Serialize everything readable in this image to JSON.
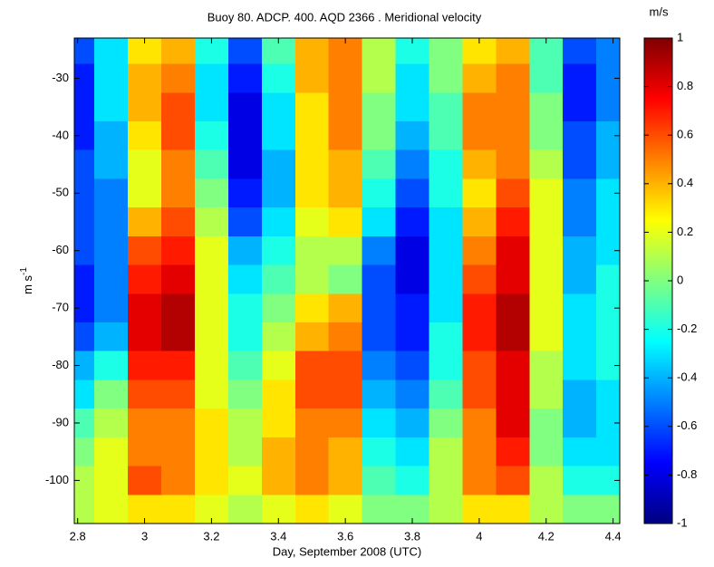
{
  "chart_data": {
    "type": "heatmap",
    "title": "Buoy 80. ADCP. 400. AQD 2366      . Meridional velocity",
    "x_label": "Day, September 2008 (UTC)",
    "y_label": "m s",
    "y_label_superscript": "-1",
    "colorbar_label": "m/s",
    "colormap": "jet",
    "x": [
      2.8,
      2.9,
      3.0,
      3.1,
      3.2,
      3.3,
      3.4,
      3.5,
      3.6,
      3.7,
      3.8,
      3.9,
      4.0,
      4.1,
      4.2,
      4.3,
      4.4
    ],
    "y": [
      -25,
      -30,
      -35,
      -40,
      -45,
      -50,
      -55,
      -60,
      -65,
      -70,
      -75,
      -80,
      -85,
      -90,
      -95,
      -100,
      -105
    ],
    "z": [
      [
        -0.6,
        -0.3,
        0.3,
        0.4,
        -0.2,
        -0.6,
        -0.1,
        0.4,
        0.5,
        0.1,
        -0.2,
        0.0,
        0.3,
        0.4,
        -0.1,
        -0.6,
        -0.5
      ],
      [
        -0.7,
        -0.3,
        0.4,
        0.5,
        -0.3,
        -0.7,
        -0.2,
        0.4,
        0.5,
        0.1,
        -0.3,
        0.0,
        0.4,
        0.5,
        -0.1,
        -0.7,
        -0.5
      ],
      [
        -0.7,
        -0.3,
        0.4,
        0.6,
        -0.3,
        -0.8,
        -0.3,
        0.3,
        0.5,
        0.0,
        -0.3,
        -0.1,
        0.5,
        0.5,
        0.0,
        -0.7,
        -0.5
      ],
      [
        -0.7,
        -0.4,
        0.3,
        0.6,
        -0.2,
        -0.8,
        -0.3,
        0.3,
        0.5,
        0.0,
        -0.4,
        -0.1,
        0.5,
        0.5,
        0.0,
        -0.6,
        -0.4
      ],
      [
        -0.6,
        -0.4,
        0.2,
        0.5,
        -0.1,
        -0.8,
        -0.4,
        0.3,
        0.4,
        -0.1,
        -0.5,
        -0.2,
        0.4,
        0.5,
        0.1,
        -0.6,
        -0.4
      ],
      [
        -0.6,
        -0.5,
        0.2,
        0.5,
        0.0,
        -0.7,
        -0.4,
        0.3,
        0.4,
        -0.2,
        -0.6,
        -0.2,
        0.3,
        0.6,
        0.2,
        -0.5,
        -0.3
      ],
      [
        -0.6,
        -0.5,
        0.4,
        0.6,
        0.1,
        -0.6,
        -0.3,
        0.2,
        0.3,
        -0.3,
        -0.7,
        -0.3,
        0.4,
        0.7,
        0.2,
        -0.5,
        -0.3
      ],
      [
        -0.6,
        -0.5,
        0.6,
        0.7,
        0.2,
        -0.4,
        -0.2,
        0.1,
        0.1,
        -0.5,
        -0.8,
        -0.3,
        0.5,
        0.8,
        0.2,
        -0.4,
        -0.3
      ],
      [
        -0.7,
        -0.5,
        0.7,
        0.8,
        0.2,
        -0.3,
        -0.1,
        0.1,
        0.0,
        -0.6,
        -0.8,
        -0.3,
        0.6,
        0.8,
        0.2,
        -0.4,
        -0.2
      ],
      [
        -0.7,
        -0.5,
        0.8,
        0.9,
        0.2,
        -0.2,
        0.0,
        0.3,
        0.4,
        -0.6,
        -0.7,
        -0.3,
        0.7,
        0.9,
        0.2,
        -0.3,
        -0.2
      ],
      [
        -0.6,
        -0.4,
        0.8,
        0.9,
        0.2,
        -0.2,
        0.1,
        0.4,
        0.5,
        -0.6,
        -0.7,
        -0.2,
        0.7,
        0.9,
        0.2,
        -0.3,
        -0.2
      ],
      [
        -0.4,
        -0.2,
        0.7,
        0.7,
        0.2,
        -0.1,
        0.2,
        0.6,
        0.6,
        -0.5,
        -0.6,
        -0.2,
        0.6,
        0.8,
        0.1,
        -0.3,
        -0.2
      ],
      [
        -0.3,
        0.0,
        0.6,
        0.6,
        0.2,
        0.0,
        0.3,
        0.6,
        0.6,
        -0.4,
        -0.5,
        -0.1,
        0.6,
        0.8,
        0.1,
        -0.4,
        -0.3
      ],
      [
        -0.1,
        0.1,
        0.5,
        0.5,
        0.3,
        0.1,
        0.3,
        0.5,
        0.5,
        -0.3,
        -0.4,
        0.0,
        0.5,
        0.8,
        0.0,
        -0.4,
        -0.3
      ],
      [
        0.0,
        0.2,
        0.5,
        0.5,
        0.3,
        0.1,
        0.4,
        0.5,
        0.4,
        -0.2,
        -0.3,
        0.1,
        0.5,
        0.7,
        0.0,
        -0.3,
        -0.3
      ],
      [
        0.1,
        0.2,
        0.6,
        0.5,
        0.3,
        0.2,
        0.4,
        0.5,
        0.4,
        -0.1,
        -0.2,
        0.1,
        0.5,
        0.6,
        0.1,
        -0.2,
        -0.2
      ],
      [
        0.1,
        0.2,
        0.3,
        0.3,
        0.2,
        0.1,
        0.2,
        0.3,
        0.2,
        0.0,
        0.0,
        0.1,
        0.3,
        0.3,
        0.1,
        0.0,
        0.0
      ]
    ],
    "xlim": [
      2.79,
      4.42
    ],
    "ylim": [
      -107.5,
      -23
    ],
    "xticks": [
      2.8,
      3,
      3.2,
      3.4,
      3.6,
      3.8,
      4,
      4.2,
      4.4
    ],
    "yticks": [
      -30,
      -40,
      -50,
      -60,
      -70,
      -80,
      -90,
      -100
    ],
    "clim": [
      -1,
      1
    ],
    "cticks": [
      -1,
      -0.8,
      -0.6,
      -0.4,
      -0.2,
      0,
      0.2,
      0.4,
      0.6,
      0.8,
      1
    ]
  }
}
